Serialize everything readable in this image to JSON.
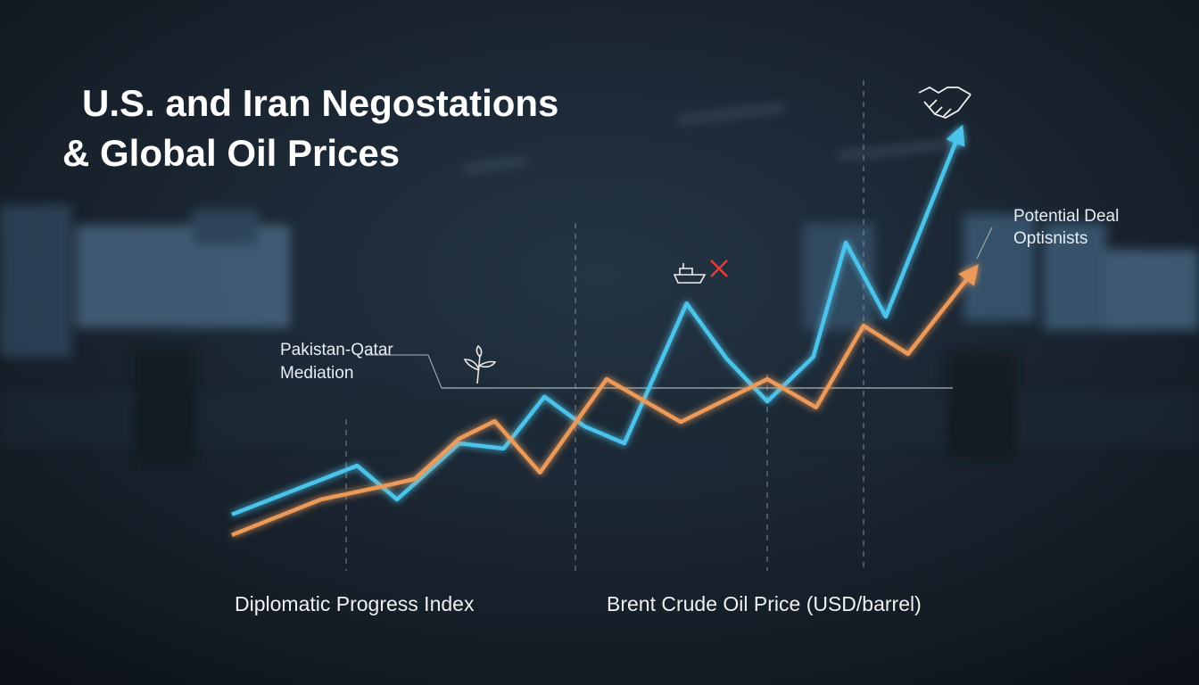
{
  "chart_data": {
    "type": "line",
    "title": [
      "U.S. and Iran Negostations",
      "& Global Oil Prices"
    ],
    "annotations": [
      [
        "Pakistan-Qatar",
        "Mediation"
      ],
      [
        "Potential Deal",
        "Optisnists"
      ]
    ],
    "xlim": [
      0,
      100
    ],
    "ylim": [
      0,
      100
    ],
    "series": [
      {
        "name": "Diplomatic Progress Index",
        "color": "#4cc3ea",
        "x": [
          0,
          16.9,
          22.3,
          30.7,
          36.7,
          42.2,
          47.6,
          53,
          61.4,
          66.8,
          72.3,
          78.5,
          82.9,
          88.3,
          98.2
        ],
        "values": [
          9,
          20.4,
          12.5,
          25.6,
          24.4,
          36.5,
          29.6,
          25.6,
          58.3,
          45.4,
          35.4,
          45.8,
          72.5,
          55.2,
          97.9
        ]
      },
      {
        "name": "Brent Crude Oil Price (USD/barrel)",
        "color": "#ec9a5a",
        "x": [
          0,
          12,
          20.5,
          24.7,
          30.7,
          35.5,
          41.6,
          50.6,
          60.6,
          72.3,
          78.9,
          85.3,
          91.3,
          100
        ],
        "values": [
          4.2,
          12.5,
          15.6,
          17.3,
          26.7,
          30.8,
          18.8,
          40.6,
          30.6,
          40.6,
          34,
          53.1,
          46.5,
          65.6
        ]
      }
    ]
  }
}
